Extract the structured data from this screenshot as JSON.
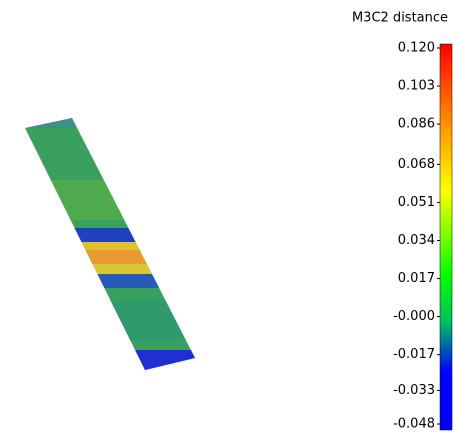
{
  "colorbar": {
    "title": "M3C2 distance",
    "lim": [
      -0.048,
      0.12
    ],
    "ticks": [
      {
        "value": 0.12,
        "label": "0.120"
      },
      {
        "value": 0.103,
        "label": "0.103"
      },
      {
        "value": 0.086,
        "label": "0.086"
      },
      {
        "value": 0.068,
        "label": "0.068"
      },
      {
        "value": 0.051,
        "label": "0.051"
      },
      {
        "value": 0.034,
        "label": "0.034"
      },
      {
        "value": 0.017,
        "label": "0.017"
      },
      {
        "value": 0,
        "label": "-0.000"
      },
      {
        "value": -0.017,
        "label": "-0.017"
      },
      {
        "value": -0.033,
        "label": "-0.033"
      },
      {
        "value": -0.048,
        "label": "-0.048"
      }
    ]
  }
}
